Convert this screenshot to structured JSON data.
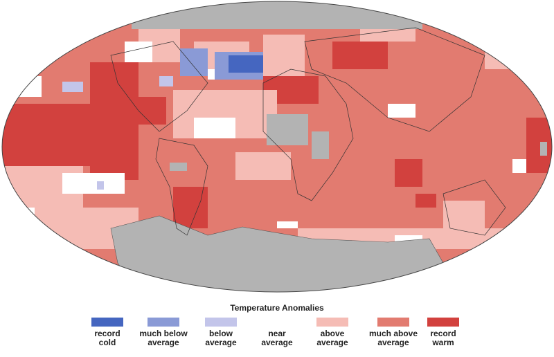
{
  "legend": {
    "title": "Temperature Anomalies",
    "items": [
      {
        "lines": [
          "record",
          "cold"
        ],
        "color": "#4566c0"
      },
      {
        "lines": [
          "much below",
          "average"
        ],
        "color": "#8a9ad6"
      },
      {
        "lines": [
          "below",
          "average"
        ],
        "color": "#c3c5ea"
      },
      {
        "lines": [
          "near",
          "average"
        ],
        "color": "#ffffff"
      },
      {
        "lines": [
          "above",
          "average"
        ],
        "color": "#f5bcb5"
      },
      {
        "lines": [
          "much above",
          "average"
        ],
        "color": "#e27b70"
      },
      {
        "lines": [
          "record",
          "warm"
        ],
        "color": "#d2413e"
      }
    ]
  }
}
